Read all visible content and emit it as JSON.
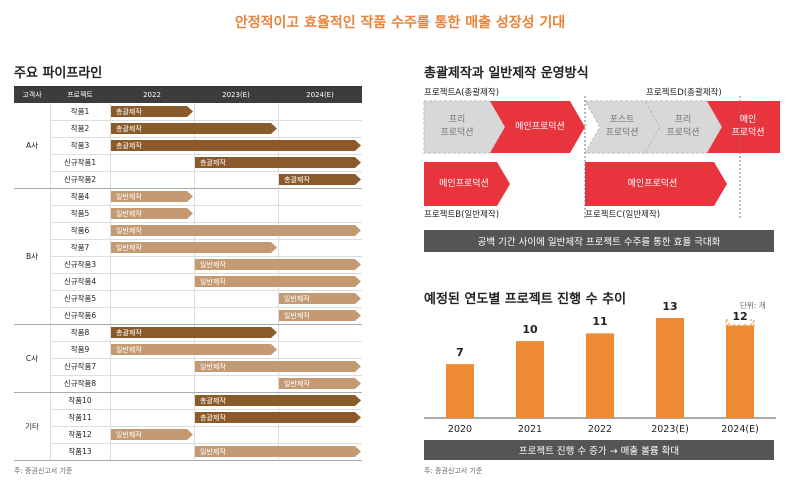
{
  "title": "안정적이고 효율적인 작품 수주를 통한 매출 성장성 기대",
  "pipeline": {
    "title": "주요 파이프라인",
    "headers": [
      "고객사",
      "프로젝트",
      "2022",
      "2023(E)",
      "2024(E)"
    ],
    "note": "주: 증권신고서 기준",
    "rows": [
      {
        "client": "A사",
        "project": "작품1",
        "label": "총괄제작",
        "start": 0.0,
        "end": 1.0,
        "type": "total"
      },
      {
        "client": "A사",
        "project": "작품2",
        "label": "총괄제작",
        "start": 0.0,
        "end": 2.0,
        "type": "total"
      },
      {
        "client": "A사",
        "project": "작품3",
        "label": "총괄제작",
        "start": 0.0,
        "end": 3.0,
        "type": "total"
      },
      {
        "client": "A사",
        "project": "신규작품1",
        "label": "총괄제작",
        "start": 1.0,
        "end": 3.0,
        "type": "total"
      },
      {
        "client": "A사",
        "project": "신규작품2",
        "label": "총괄제작",
        "start": 2.0,
        "end": 3.0,
        "type": "total"
      },
      {
        "client": "B사",
        "project": "작품4",
        "label": "일반제작",
        "start": 0.0,
        "end": 1.0,
        "type": "general"
      },
      {
        "client": "B사",
        "project": "작품5",
        "label": "일반제작",
        "start": 0.0,
        "end": 1.0,
        "type": "general"
      },
      {
        "client": "B사",
        "project": "작품6",
        "label": "일반제작",
        "start": 0.0,
        "end": 3.0,
        "type": "general"
      },
      {
        "client": "B사",
        "project": "작품7",
        "label": "일반제작",
        "start": 0.0,
        "end": 2.0,
        "type": "general"
      },
      {
        "client": "B사",
        "project": "신규작품3",
        "label": "일반제작",
        "start": 1.0,
        "end": 3.0,
        "type": "general"
      },
      {
        "client": "B사",
        "project": "신규작품4",
        "label": "일반제작",
        "start": 1.0,
        "end": 3.0,
        "type": "general"
      },
      {
        "client": "B사",
        "project": "신규작품5",
        "label": "일반제작",
        "start": 2.0,
        "end": 3.0,
        "type": "general"
      },
      {
        "client": "B사",
        "project": "신규작품6",
        "label": "일반제작",
        "start": 2.0,
        "end": 3.0,
        "type": "general"
      },
      {
        "client": "C사",
        "project": "작품8",
        "label": "총괄제작",
        "start": 0.0,
        "end": 2.0,
        "type": "total"
      },
      {
        "client": "C사",
        "project": "작품9",
        "label": "일반제작",
        "start": 0.0,
        "end": 2.0,
        "type": "general"
      },
      {
        "client": "C사",
        "project": "신규작품7",
        "label": "일반제작",
        "start": 1.0,
        "end": 3.0,
        "type": "general"
      },
      {
        "client": "C사",
        "project": "신규작품8",
        "label": "일반제작",
        "start": 2.0,
        "end": 3.0,
        "type": "general"
      },
      {
        "client": "기타",
        "project": "작품10",
        "label": "총괄제작",
        "start": 1.0,
        "end": 3.0,
        "type": "total"
      },
      {
        "client": "기타",
        "project": "작품11",
        "label": "총괄제작",
        "start": 1.0,
        "end": 3.0,
        "type": "total"
      },
      {
        "client": "기타",
        "project": "작품12",
        "label": "일반제작",
        "start": 0.0,
        "end": 1.0,
        "type": "general"
      },
      {
        "client": "기타",
        "project": "작품13",
        "label": "일반제작",
        "start": 1.0,
        "end": 3.0,
        "type": "general"
      }
    ],
    "groups": [
      "A사",
      "B사",
      "C사",
      "기타"
    ],
    "colors": {
      "total": "#8b5a2b",
      "general": "#c49a72"
    }
  },
  "operation": {
    "title": "총괄제작과 일반제작 운영방식",
    "project_a": "프로젝트A(총괄제작)",
    "project_d": "프로젝트D(총괄제작)",
    "project_b": "프로젝트B(일반제작)",
    "project_c": "프로젝트C(일반제작)",
    "pre1": "프리\n프로덕션",
    "main1": "메인프로덕션",
    "post": "포스트\n프로덕션",
    "pre2": "프리\n프로덕션",
    "main2": "메인\n프로덕션",
    "main_b": "메인프로덕션",
    "main_c": "메인프로덕션",
    "banner": "공백 기간 사이에 일반제작 프로젝트 수주를 통한 효율 극대화",
    "colors": {
      "red": "#e8343d",
      "gray": "#d8d8d8"
    }
  },
  "projects_chart": {
    "title": "예정된 연도별 프로젝트 진행 수 추이",
    "unit": "단위: 개",
    "banner": "프로젝트 진행 수 증가 → 매출 볼륨 확대",
    "note": "주: 증권신고서 기준",
    "colors": {
      "bar": "#ee8a32"
    }
  },
  "chart_data": {
    "type": "bar",
    "title": "예정된 연도별 프로젝트 진행 수 추이",
    "categories": [
      "2020",
      "2021",
      "2022",
      "2023(E)",
      "2024(E)"
    ],
    "values": [
      7,
      10,
      11,
      13,
      12
    ],
    "xlabel": "",
    "ylabel": "",
    "ylim": [
      0,
      18
    ],
    "grid": false,
    "value_labels": [
      "7",
      "10",
      "11",
      "13",
      "12"
    ]
  }
}
